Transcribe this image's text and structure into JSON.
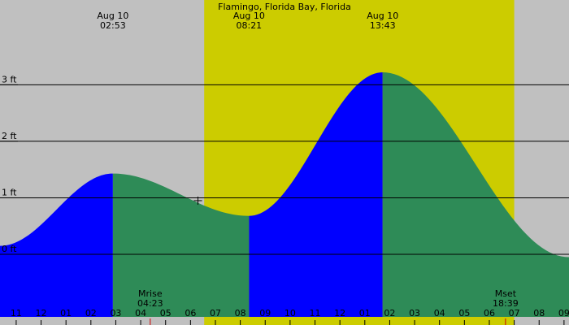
{
  "chart_data": {
    "type": "area",
    "title": "Flamingo, Florida Bay, Florida",
    "y_unit": "ft",
    "ylim": [
      -1.25,
      4.5
    ],
    "y_ticks": [
      {
        "label": "0 ft",
        "value": 0
      },
      {
        "label": "1 ft",
        "value": 1
      },
      {
        "label": "2 ft",
        "value": 2
      },
      {
        "label": "3 ft",
        "value": 3
      }
    ],
    "x_unit": "hours from midnight, Aug 10",
    "xlim": [
      -1.65,
      21.2
    ],
    "x_ticks": [
      {
        "label": "11",
        "value": -1
      },
      {
        "label": "12",
        "value": 0
      },
      {
        "label": "01",
        "value": 1
      },
      {
        "label": "02",
        "value": 2
      },
      {
        "label": "03",
        "value": 3
      },
      {
        "label": "04",
        "value": 4
      },
      {
        "label": "05",
        "value": 5
      },
      {
        "label": "06",
        "value": 6
      },
      {
        "label": "07",
        "value": 7
      },
      {
        "label": "08",
        "value": 8
      },
      {
        "label": "09",
        "value": 9
      },
      {
        "label": "10",
        "value": 10
      },
      {
        "label": "11",
        "value": 11
      },
      {
        "label": "12",
        "value": 12
      },
      {
        "label": "01",
        "value": 13
      },
      {
        "label": "02",
        "value": 14
      },
      {
        "label": "03",
        "value": 15
      },
      {
        "label": "04",
        "value": 16
      },
      {
        "label": "05",
        "value": 17
      },
      {
        "label": "06",
        "value": 18
      },
      {
        "label": "07",
        "value": 19
      },
      {
        "label": "08",
        "value": 20
      },
      {
        "label": "09",
        "value": 21
      }
    ],
    "daylight": [
      6.55,
      19.0
    ],
    "tide_events": [
      {
        "date": "Aug 10",
        "time": "02:53",
        "hours": 2.883,
        "height_ft": 1.43,
        "type": "high"
      },
      {
        "date": "Aug 10",
        "time": "08:21",
        "hours": 8.35,
        "height_ft": 0.68,
        "type": "low"
      },
      {
        "date": "Aug 10",
        "time": "13:43",
        "hours": 13.717,
        "height_ft": 3.22,
        "type": "high"
      }
    ],
    "edge_points": [
      {
        "hours": -1.65,
        "height_ft": 0.15
      },
      {
        "hours": 21.2,
        "height_ft": -0.05
      }
    ],
    "current_time_marker": {
      "hours": 6.3,
      "height_ft": 0.95
    },
    "moon_events": [
      {
        "label": "Mrise",
        "time": "04:23",
        "hours": 4.383
      },
      {
        "label": "Mset",
        "time": "18:39",
        "hours": 18.65
      }
    ],
    "colors": {
      "background": "#c0c0c0",
      "daylight": "#cccc00",
      "rising": "#0000ff",
      "falling": "#2e8b57",
      "gridline": "#000000",
      "moon_marker": "#cc0000"
    }
  }
}
